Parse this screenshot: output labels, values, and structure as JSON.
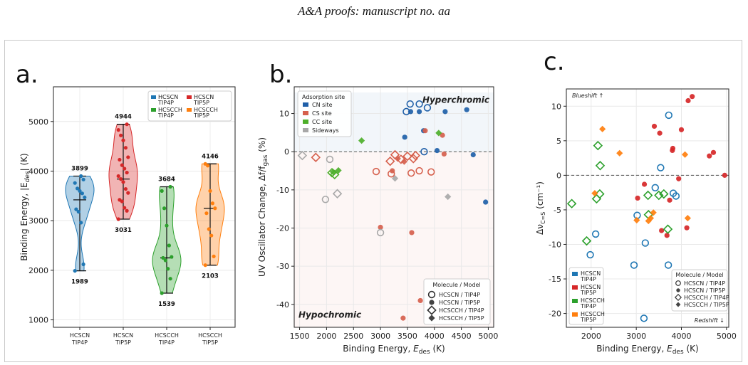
{
  "header": "A&A proofs: manuscript no. aa",
  "panels": [
    {
      "label": "a.",
      "chart_data": {
        "type": "violin",
        "ylabel": "Binding Energy,  |E_des|  (K)",
        "ylim": [
          850,
          5700
        ],
        "yticks": [
          1000,
          2000,
          3000,
          4000,
          5000
        ],
        "grid": true,
        "legend_position": "top-right",
        "categories": [
          "HCSCN\nTIP4P",
          "HCSCN\nTIP5P",
          "HCSCCH\nTIP4P",
          "HCSCCH\nTIP5P"
        ],
        "series": [
          {
            "name": "HCSCN\nTIP4P",
            "color": "#1f77b4",
            "min": 1989,
            "max": 3899,
            "median": 3420,
            "points": [
              1989,
              2120,
              2960,
              3180,
              3230,
              3470,
              3550,
              3600,
              3650,
              3760,
              3830,
              3899
            ]
          },
          {
            "name": "HCSCN\nTIP5P",
            "color": "#d62728",
            "min": 3031,
            "max": 4944,
            "median": 3840,
            "points": [
              3031,
              3200,
              3260,
              3390,
              3420,
              3560,
              3640,
              3780,
              3840,
              3900,
              3970,
              4050,
              4120,
              4230,
              4280,
              4470,
              4620,
              4720,
              4830,
              4944
            ]
          },
          {
            "name": "HCSCCH\nTIP4P",
            "color": "#2ca02c",
            "min": 1539,
            "max": 3684,
            "median": 2250,
            "points": [
              1539,
              1830,
              2030,
              2200,
              2250,
              2270,
              2500,
              2900,
              3250,
              3600,
              3684
            ]
          },
          {
            "name": "HCSCCH\nTIP5P",
            "color": "#ff7f0e",
            "min": 2103,
            "max": 4146,
            "median": 3250,
            "points": [
              2103,
              2280,
              2700,
              2830,
              3150,
              3250,
              3350,
              3600,
              4110,
              4146
            ]
          }
        ],
        "annotations": {
          "max_labels": [
            "3899",
            "4944",
            "3684",
            "4146"
          ],
          "min_labels": [
            "1989",
            "3031",
            "1539",
            "2103"
          ]
        }
      }
    },
    {
      "label": "b.",
      "chart_data": {
        "type": "scatter",
        "xlabel": "Binding Energy,  E_des  (K)",
        "ylabel": "UV Oscillator Change,  Δf/f_gas  (%)",
        "xlim": [
          1400,
          5100
        ],
        "ylim": [
          -46,
          17
        ],
        "xticks": [
          1500,
          2000,
          2500,
          3000,
          3500,
          4000,
          4500,
          5000
        ],
        "yticks": [
          -40,
          -30,
          -20,
          -10,
          0,
          10
        ],
        "grid": true,
        "regions": [
          {
            "label": "Hyperchromic",
            "color": "#2166ac"
          },
          {
            "label": "Hypochromic",
            "color": "#d6604d"
          }
        ],
        "legend_sites": {
          "title": "Adsorption site",
          "entries": [
            {
              "name": "CN site",
              "color": "#1f5fa8"
            },
            {
              "name": "CS site",
              "color": "#d6604d"
            },
            {
              "name": "CC site",
              "color": "#4daf2a"
            },
            {
              "name": "Sideways",
              "color": "#a8a8a8"
            }
          ]
        },
        "legend_models": {
          "title": "Molecule / Model",
          "entries": [
            {
              "name": "HCSCN / TIP4P",
              "marker": "open-circle"
            },
            {
              "name": "HCSCN / TIP5P",
              "marker": "filled-circle"
            },
            {
              "name": "HCSCCH / TIP4P",
              "marker": "open-diamond"
            },
            {
              "name": "HCSCCH / TIP5P",
              "marker": "filled-diamond"
            }
          ]
        },
        "points": [
          {
            "x": 3480,
            "y": 10.5,
            "site": "CN",
            "m": "oc"
          },
          {
            "x": 3550,
            "y": 12.5,
            "site": "CN",
            "m": "oc"
          },
          {
            "x": 3720,
            "y": 12.5,
            "site": "CN",
            "m": "oc"
          },
          {
            "x": 3870,
            "y": 11.5,
            "site": "CN",
            "m": "oc"
          },
          {
            "x": 3810,
            "y": 0,
            "site": "CN",
            "m": "oc"
          },
          {
            "x": 3560,
            "y": 10.5,
            "site": "CN",
            "m": "fc"
          },
          {
            "x": 3720,
            "y": 10.5,
            "site": "CN",
            "m": "fc"
          },
          {
            "x": 4200,
            "y": 10.5,
            "site": "CN",
            "m": "fc"
          },
          {
            "x": 4600,
            "y": 11.0,
            "site": "CN",
            "m": "fc"
          },
          {
            "x": 3450,
            "y": 3.8,
            "site": "CN",
            "m": "fc"
          },
          {
            "x": 3800,
            "y": 5.5,
            "site": "CN",
            "m": "fc"
          },
          {
            "x": 4050,
            "y": 0.3,
            "site": "CN",
            "m": "fc"
          },
          {
            "x": 4720,
            "y": -0.8,
            "site": "CN",
            "m": "fc"
          },
          {
            "x": 4950,
            "y": -13.2,
            "site": "CN",
            "m": "fc"
          },
          {
            "x": 2920,
            "y": -5.2,
            "site": "CS",
            "m": "oc"
          },
          {
            "x": 3200,
            "y": -5.8,
            "site": "CS",
            "m": "oc"
          },
          {
            "x": 3570,
            "y": -5.6,
            "site": "CS",
            "m": "oc"
          },
          {
            "x": 3720,
            "y": -5.0,
            "site": "CS",
            "m": "oc"
          },
          {
            "x": 3940,
            "y": -5.3,
            "site": "CS",
            "m": "oc"
          },
          {
            "x": 3000,
            "y": -19.8,
            "site": "CS",
            "m": "fc"
          },
          {
            "x": 3220,
            "y": -5.0,
            "site": "CS",
            "m": "fc"
          },
          {
            "x": 3580,
            "y": -21.2,
            "site": "CS",
            "m": "fc"
          },
          {
            "x": 3740,
            "y": -39.0,
            "site": "CS",
            "m": "fc"
          },
          {
            "x": 3420,
            "y": -43.6,
            "site": "CS",
            "m": "fc"
          },
          {
            "x": 3830,
            "y": 5.5,
            "site": "CS",
            "m": "fc"
          },
          {
            "x": 4150,
            "y": 4.3,
            "site": "CS",
            "m": "fc"
          },
          {
            "x": 4180,
            "y": -0.6,
            "site": "CS",
            "m": "fc"
          },
          {
            "x": 1800,
            "y": -1.5,
            "site": "CS",
            "m": "od"
          },
          {
            "x": 3270,
            "y": -0.8,
            "site": "CS",
            "m": "od"
          },
          {
            "x": 3180,
            "y": -2.5,
            "site": "CS",
            "m": "od"
          },
          {
            "x": 3380,
            "y": -2.0,
            "site": "CS",
            "m": "od"
          },
          {
            "x": 3500,
            "y": -1.2,
            "site": "CS",
            "m": "od"
          },
          {
            "x": 3610,
            "y": -1.8,
            "site": "CS",
            "m": "od"
          },
          {
            "x": 3650,
            "y": -1.0,
            "site": "CS",
            "m": "od"
          },
          {
            "x": 3320,
            "y": -1.8,
            "site": "CS",
            "m": "fd"
          },
          {
            "x": 3440,
            "y": -2.6,
            "site": "CS",
            "m": "fd"
          },
          {
            "x": 2100,
            "y": -5.5,
            "site": "CC",
            "m": "od"
          },
          {
            "x": 2150,
            "y": -6.0,
            "site": "CC",
            "m": "od"
          },
          {
            "x": 2120,
            "y": -5.3,
            "site": "CC",
            "m": "fd"
          },
          {
            "x": 2220,
            "y": -4.9,
            "site": "CC",
            "m": "fd"
          },
          {
            "x": 2650,
            "y": 2.9,
            "site": "CC",
            "m": "fd"
          },
          {
            "x": 4080,
            "y": 4.9,
            "site": "CC",
            "m": "fd"
          },
          {
            "x": 1550,
            "y": -1.0,
            "site": "Sideways",
            "m": "od"
          },
          {
            "x": 2200,
            "y": -11.0,
            "site": "Sideways",
            "m": "od"
          },
          {
            "x": 1980,
            "y": -12.5,
            "site": "Sideways",
            "m": "oc"
          },
          {
            "x": 2060,
            "y": -2.0,
            "site": "Sideways",
            "m": "oc"
          },
          {
            "x": 3000,
            "y": -21.2,
            "site": "Sideways",
            "m": "oc"
          },
          {
            "x": 3270,
            "y": -7.0,
            "site": "Sideways",
            "m": "fd"
          },
          {
            "x": 4250,
            "y": -11.8,
            "site": "Sideways",
            "m": "fd"
          }
        ]
      }
    },
    {
      "label": "c.",
      "chart_data": {
        "type": "scatter",
        "xlabel": "Binding Energy,  E_des  (K)",
        "ylabel": "Δν_C=S  (cm⁻¹)",
        "xlim": [
          1450,
          5050
        ],
        "ylim": [
          -22,
          12.5
        ],
        "xticks": [
          2000,
          3000,
          4000,
          5000
        ],
        "yticks": [
          -20,
          -15,
          -10,
          -5,
          0,
          5,
          10
        ],
        "grid": true,
        "annotations": [
          "Blueshift ↑",
          "Redshift ↓"
        ],
        "legend_colors": {
          "entries": [
            {
              "name": "HCSCN\nTIP4P",
              "color": "#1f77b4"
            },
            {
              "name": "HCSCN\nTIP5P",
              "color": "#d62728"
            },
            {
              "name": "HCSCCH\nTIP4P",
              "color": "#2ca02c"
            },
            {
              "name": "HCSCCH\nTIP5P",
              "color": "#ff7f0e"
            }
          ]
        },
        "legend_models": {
          "title": "Molecule / Model",
          "entries": [
            {
              "name": "HCSCN / TIP4P",
              "marker": "open-circle"
            },
            {
              "name": "HCSCN / TIP5P",
              "marker": "filled-circle"
            },
            {
              "name": "HCSCCH / TIP4P",
              "marker": "open-diamond"
            },
            {
              "name": "HCSCCH / TIP5P",
              "marker": "filled-diamond"
            }
          ]
        },
        "points": [
          {
            "x": 1980,
            "y": -11.5,
            "c": "#1f77b4",
            "m": "oc"
          },
          {
            "x": 2100,
            "y": -8.5,
            "c": "#1f77b4",
            "m": "oc"
          },
          {
            "x": 2950,
            "y": -13.0,
            "c": "#1f77b4",
            "m": "oc"
          },
          {
            "x": 3020,
            "y": -5.8,
            "c": "#1f77b4",
            "m": "oc"
          },
          {
            "x": 3170,
            "y": -20.7,
            "c": "#1f77b4",
            "m": "oc"
          },
          {
            "x": 3200,
            "y": -9.8,
            "c": "#1f77b4",
            "m": "oc"
          },
          {
            "x": 3420,
            "y": -1.8,
            "c": "#1f77b4",
            "m": "oc"
          },
          {
            "x": 3540,
            "y": 1.1,
            "c": "#1f77b4",
            "m": "oc"
          },
          {
            "x": 3710,
            "y": -13.0,
            "c": "#1f77b4",
            "m": "oc"
          },
          {
            "x": 3720,
            "y": 8.7,
            "c": "#1f77b4",
            "m": "oc"
          },
          {
            "x": 3820,
            "y": -2.6,
            "c": "#1f77b4",
            "m": "oc"
          },
          {
            "x": 3880,
            "y": -3.0,
            "c": "#1f77b4",
            "m": "oc"
          },
          {
            "x": 3030,
            "y": -3.3,
            "c": "#d62728",
            "m": "fc"
          },
          {
            "x": 3180,
            "y": -1.3,
            "c": "#d62728",
            "m": "fc"
          },
          {
            "x": 3400,
            "y": 7.1,
            "c": "#d62728",
            "m": "fc"
          },
          {
            "x": 3520,
            "y": 6.1,
            "c": "#d62728",
            "m": "fc"
          },
          {
            "x": 3560,
            "y": -8.0,
            "c": "#d62728",
            "m": "fc"
          },
          {
            "x": 3680,
            "y": -8.7,
            "c": "#d62728",
            "m": "fc"
          },
          {
            "x": 3740,
            "y": -3.6,
            "c": "#d62728",
            "m": "fc"
          },
          {
            "x": 3800,
            "y": 3.6,
            "c": "#d62728",
            "m": "fc"
          },
          {
            "x": 3810,
            "y": 3.9,
            "c": "#d62728",
            "m": "fc"
          },
          {
            "x": 3940,
            "y": -0.5,
            "c": "#d62728",
            "m": "fc"
          },
          {
            "x": 4000,
            "y": 6.6,
            "c": "#d62728",
            "m": "fc"
          },
          {
            "x": 4120,
            "y": -7.6,
            "c": "#d62728",
            "m": "fc"
          },
          {
            "x": 4150,
            "y": 10.8,
            "c": "#d62728",
            "m": "fc"
          },
          {
            "x": 4240,
            "y": 11.4,
            "c": "#d62728",
            "m": "fc"
          },
          {
            "x": 4620,
            "y": 2.8,
            "c": "#d62728",
            "m": "fc"
          },
          {
            "x": 4710,
            "y": 3.3,
            "c": "#d62728",
            "m": "fc"
          },
          {
            "x": 4960,
            "y": 0,
            "c": "#d62728",
            "m": "fc"
          },
          {
            "x": 1570,
            "y": -4.1,
            "c": "#2ca02c",
            "m": "od"
          },
          {
            "x": 1900,
            "y": -9.5,
            "c": "#2ca02c",
            "m": "od"
          },
          {
            "x": 2120,
            "y": -3.4,
            "c": "#2ca02c",
            "m": "od"
          },
          {
            "x": 2150,
            "y": 4.3,
            "c": "#2ca02c",
            "m": "od"
          },
          {
            "x": 2190,
            "y": -2.7,
            "c": "#2ca02c",
            "m": "od"
          },
          {
            "x": 2200,
            "y": 1.4,
            "c": "#2ca02c",
            "m": "od"
          },
          {
            "x": 3260,
            "y": -2.9,
            "c": "#2ca02c",
            "m": "od"
          },
          {
            "x": 3270,
            "y": -5.7,
            "c": "#2ca02c",
            "m": "od"
          },
          {
            "x": 3500,
            "y": -2.9,
            "c": "#2ca02c",
            "m": "od"
          },
          {
            "x": 3610,
            "y": -2.7,
            "c": "#2ca02c",
            "m": "od"
          },
          {
            "x": 3700,
            "y": -7.8,
            "c": "#2ca02c",
            "m": "od"
          },
          {
            "x": 2080,
            "y": -2.6,
            "c": "#ff7f0e",
            "m": "fd"
          },
          {
            "x": 2250,
            "y": 6.7,
            "c": "#ff7f0e",
            "m": "fd"
          },
          {
            "x": 2630,
            "y": 3.2,
            "c": "#ff7f0e",
            "m": "fd"
          },
          {
            "x": 3010,
            "y": -6.5,
            "c": "#ff7f0e",
            "m": "fd"
          },
          {
            "x": 3270,
            "y": -6.6,
            "c": "#ff7f0e",
            "m": "fd"
          },
          {
            "x": 3320,
            "y": -6.2,
            "c": "#ff7f0e",
            "m": "fd"
          },
          {
            "x": 3380,
            "y": -5.4,
            "c": "#ff7f0e",
            "m": "fd"
          },
          {
            "x": 4080,
            "y": 3.0,
            "c": "#ff7f0e",
            "m": "fd"
          },
          {
            "x": 4140,
            "y": -6.2,
            "c": "#ff7f0e",
            "m": "fd"
          }
        ]
      }
    }
  ]
}
